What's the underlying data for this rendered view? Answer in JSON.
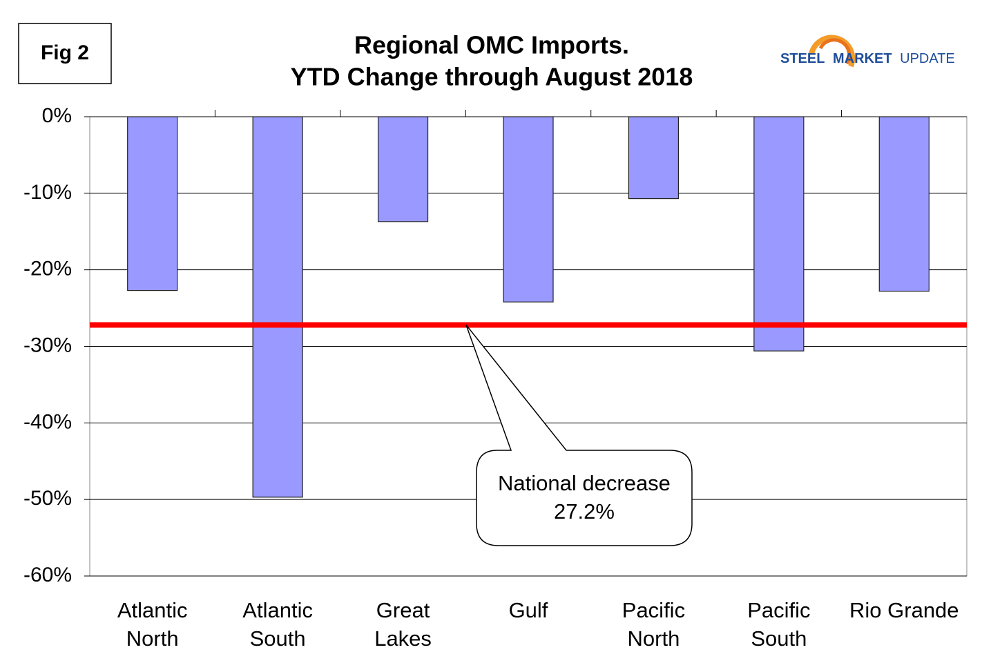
{
  "figure_label": "Fig 2",
  "logo": [
    "STEEL",
    "MARKET",
    "UPDATE"
  ],
  "chart_data": {
    "type": "bar",
    "title": [
      "Regional OMC Imports.",
      "YTD Change through August 2018"
    ],
    "categories": [
      [
        "Atlantic",
        "North"
      ],
      [
        "Atlantic",
        "South"
      ],
      [
        "Great",
        "Lakes"
      ],
      [
        "Gulf"
      ],
      [
        "Pacific",
        "North"
      ],
      [
        "Pacific",
        "South"
      ],
      [
        "Rio Grande"
      ]
    ],
    "values": [
      -22.7,
      -49.7,
      -13.7,
      -24.2,
      -10.7,
      -30.6,
      -22.8
    ],
    "color": "#9999ff",
    "ylim": [
      -60,
      0
    ],
    "yticks": [
      {
        "value": 0,
        "label": "0%"
      },
      {
        "value": -10,
        "label": "-10%"
      },
      {
        "value": -20,
        "label": "-20%"
      },
      {
        "value": -30,
        "label": "-30%"
      },
      {
        "value": -40,
        "label": "-40%"
      },
      {
        "value": -50,
        "label": "-50%"
      },
      {
        "value": -60,
        "label": "-60%"
      }
    ],
    "grid": true,
    "reference_line": {
      "value": -27.2,
      "color": "#ff0000"
    },
    "annotation": [
      "National decrease",
      "27.2%"
    ]
  }
}
